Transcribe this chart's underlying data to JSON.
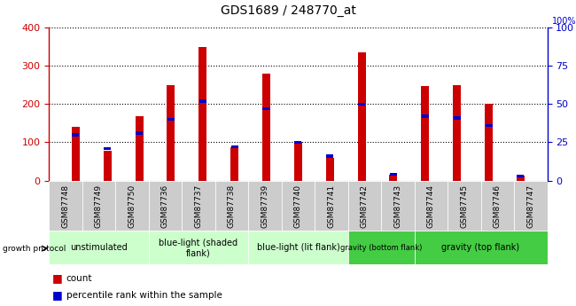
{
  "title": "GDS1689 / 248770_at",
  "samples": [
    "GSM87748",
    "GSM87749",
    "GSM87750",
    "GSM87736",
    "GSM87737",
    "GSM87738",
    "GSM87739",
    "GSM87740",
    "GSM87741",
    "GSM87742",
    "GSM87743",
    "GSM87744",
    "GSM87745",
    "GSM87746",
    "GSM87747"
  ],
  "count_values": [
    140,
    78,
    168,
    250,
    348,
    88,
    280,
    100,
    60,
    335,
    15,
    248,
    250,
    200,
    12
  ],
  "percentile_values": [
    30,
    21,
    31,
    40,
    52,
    22,
    47,
    25,
    16,
    50,
    4,
    42,
    41,
    36,
    3
  ],
  "bar_color_red": "#cc0000",
  "bar_color_blue": "#0000cc",
  "ylim_left": [
    0,
    400
  ],
  "ylim_right": [
    0,
    100
  ],
  "yticks_left": [
    0,
    100,
    200,
    300,
    400
  ],
  "yticks_right": [
    0,
    25,
    50,
    75,
    100
  ],
  "group_row_color_light": "#ccffcc",
  "group_row_color_dark": "#44cc44",
  "sample_bg_color": "#cccccc",
  "plot_bg_color": "#ffffff",
  "bar_width": 0.25
}
